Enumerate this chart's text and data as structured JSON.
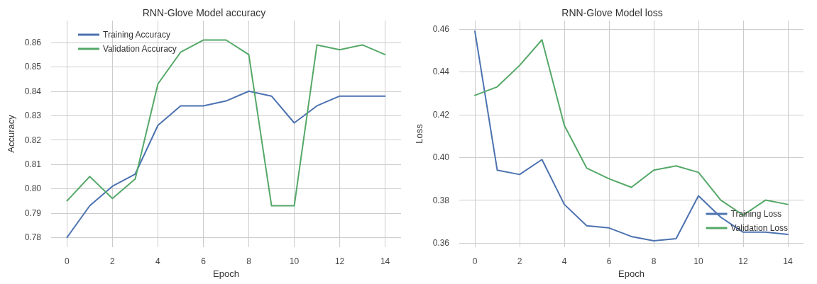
{
  "chart_data": [
    {
      "type": "line",
      "title": "RNN-Glove Model accuracy",
      "xlabel": "Epoch",
      "ylabel": "Accuracy",
      "x": [
        0,
        1,
        2,
        3,
        4,
        5,
        6,
        7,
        8,
        9,
        10,
        11,
        12,
        13,
        14
      ],
      "series": [
        {
          "name": "Training Accuracy",
          "color": "#4c72b0",
          "values": [
            0.78,
            0.793,
            0.801,
            0.806,
            0.826,
            0.834,
            0.834,
            0.836,
            0.84,
            0.838,
            0.827,
            0.834,
            0.838,
            0.838,
            0.838
          ]
        },
        {
          "name": "Validation Accuracy",
          "color": "#55a868",
          "values": [
            0.795,
            0.805,
            0.796,
            0.804,
            0.843,
            0.856,
            0.861,
            0.861,
            0.855,
            0.793,
            0.793,
            0.859,
            0.857,
            0.859,
            0.855
          ]
        }
      ],
      "xlim": [
        -0.7,
        14.7
      ],
      "xticks": [
        0,
        2,
        4,
        6,
        8,
        10,
        12,
        14
      ],
      "ylim": [
        0.776,
        0.869
      ],
      "yticks": [
        0.78,
        0.79,
        {
          "value": 0.8,
          "label": "0.80"
        },
        0.81,
        0.82,
        0.83,
        0.84,
        0.85,
        0.86
      ],
      "grid": true,
      "legend": "top left",
      "line_style": "solid",
      "marker": "none"
    },
    {
      "type": "line",
      "title": "RNN-Glove Model loss",
      "xlabel": "Epoch",
      "ylabel": "Loss",
      "x": [
        0,
        1,
        2,
        3,
        4,
        5,
        6,
        7,
        8,
        9,
        10,
        11,
        12,
        13,
        14
      ],
      "series": [
        {
          "name": "Training Loss",
          "color": "#4c72b0",
          "values": [
            0.459,
            0.394,
            0.392,
            0.399,
            0.378,
            0.368,
            0.367,
            0.363,
            0.361,
            0.362,
            0.382,
            0.372,
            0.365,
            0.365,
            0.364
          ]
        },
        {
          "name": "Validation Loss",
          "color": "#55a868",
          "values": [
            0.429,
            0.433,
            0.443,
            0.455,
            0.415,
            0.395,
            0.39,
            0.386,
            0.394,
            0.396,
            0.393,
            0.38,
            0.373,
            0.38,
            0.378
          ]
        }
      ],
      "xlim": [
        -0.7,
        14.7
      ],
      "xticks": [
        0,
        2,
        4,
        6,
        8,
        10,
        12,
        14
      ],
      "ylim": [
        0.358,
        0.464
      ],
      "yticks": [
        0.36,
        0.38,
        {
          "value": 0.4,
          "label": "0.40"
        },
        0.42,
        0.44,
        0.46
      ],
      "grid": true,
      "legend": "bottom right",
      "line_style": "solid",
      "marker": "none"
    }
  ]
}
